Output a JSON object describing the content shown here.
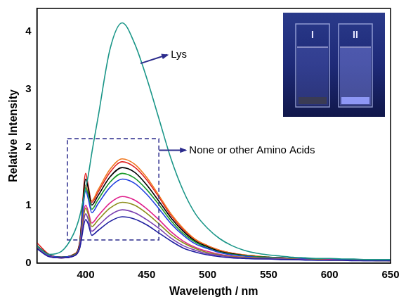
{
  "chart_data": {
    "type": "line",
    "x_label": "Wavelength / nm",
    "y_label": "Relative Intensity",
    "x": [
      360,
      370,
      380,
      390,
      395,
      400,
      402,
      405,
      410,
      420,
      430,
      440,
      450,
      460,
      470,
      480,
      490,
      500,
      510,
      520,
      530,
      540,
      550,
      560,
      570,
      580,
      590,
      600,
      610,
      620,
      630,
      640,
      650
    ],
    "xlim": [
      360,
      650
    ],
    "xticks": [
      400,
      450,
      500,
      550,
      600,
      650
    ],
    "ylim": [
      0,
      4.4
    ],
    "yticks": [
      0,
      1,
      2,
      3,
      4
    ],
    "grid": false,
    "annotations": [
      "Lys",
      "None or other Amino Acids"
    ],
    "inset_labels": [
      "I",
      "II"
    ],
    "series": [
      {
        "color": "#1a9688",
        "values": [
          0.3,
          0.15,
          0.2,
          0.5,
          0.8,
          1.3,
          1.5,
          1.9,
          2.5,
          3.7,
          4.15,
          3.8,
          3.2,
          2.5,
          1.8,
          1.25,
          0.85,
          0.6,
          0.42,
          0.3,
          0.22,
          0.17,
          0.14,
          0.12,
          0.1,
          0.09,
          0.08,
          0.08,
          0.07,
          0.07,
          0.06,
          0.06,
          0.06
        ]
      },
      {
        "color": "#1f1fa0",
        "values": [
          0.25,
          0.11,
          0.09,
          0.12,
          0.25,
          0.75,
          0.68,
          0.48,
          0.56,
          0.72,
          0.8,
          0.76,
          0.66,
          0.52,
          0.38,
          0.26,
          0.19,
          0.14,
          0.11,
          0.09,
          0.08,
          0.07,
          0.07,
          0.06,
          0.06,
          0.05,
          0.05,
          0.05,
          0.05,
          0.04,
          0.04,
          0.04,
          0.04
        ]
      },
      {
        "color": "#7a3fb0",
        "values": [
          0.26,
          0.12,
          0.09,
          0.12,
          0.26,
          0.85,
          0.76,
          0.55,
          0.64,
          0.83,
          0.92,
          0.87,
          0.75,
          0.6,
          0.43,
          0.3,
          0.22,
          0.16,
          0.13,
          0.1,
          0.09,
          0.08,
          0.07,
          0.07,
          0.06,
          0.06,
          0.05,
          0.05,
          0.05,
          0.05,
          0.04,
          0.04,
          0.04
        ]
      },
      {
        "color": "#8c8c1a",
        "values": [
          0.27,
          0.12,
          0.09,
          0.13,
          0.27,
          0.95,
          0.85,
          0.63,
          0.74,
          0.95,
          1.05,
          1.0,
          0.86,
          0.68,
          0.49,
          0.35,
          0.25,
          0.18,
          0.14,
          0.11,
          0.1,
          0.09,
          0.08,
          0.07,
          0.07,
          0.06,
          0.06,
          0.05,
          0.05,
          0.05,
          0.05,
          0.04,
          0.04
        ]
      },
      {
        "color": "#e0208c",
        "values": [
          0.27,
          0.12,
          0.09,
          0.13,
          0.28,
          1.0,
          0.9,
          0.69,
          0.81,
          1.04,
          1.15,
          1.09,
          0.94,
          0.75,
          0.54,
          0.38,
          0.27,
          0.2,
          0.15,
          0.12,
          0.1,
          0.09,
          0.08,
          0.08,
          0.07,
          0.06,
          0.06,
          0.06,
          0.05,
          0.05,
          0.05,
          0.05,
          0.04
        ]
      },
      {
        "color": "#2040e0",
        "values": [
          0.28,
          0.13,
          0.1,
          0.13,
          0.3,
          1.25,
          1.12,
          0.87,
          1.02,
          1.31,
          1.45,
          1.38,
          1.19,
          0.94,
          0.68,
          0.48,
          0.33,
          0.25,
          0.18,
          0.14,
          0.12,
          0.1,
          0.09,
          0.08,
          0.08,
          0.07,
          0.06,
          0.06,
          0.06,
          0.05,
          0.05,
          0.05,
          0.05
        ]
      },
      {
        "color": "#1a9a2a",
        "values": [
          0.28,
          0.13,
          0.1,
          0.14,
          0.3,
          1.3,
          1.18,
          0.93,
          1.09,
          1.4,
          1.55,
          1.47,
          1.27,
          1.01,
          0.73,
          0.51,
          0.36,
          0.26,
          0.19,
          0.15,
          0.13,
          0.11,
          0.1,
          0.09,
          0.08,
          0.07,
          0.07,
          0.06,
          0.06,
          0.06,
          0.05,
          0.05,
          0.05
        ]
      },
      {
        "color": "#000000",
        "values": [
          0.3,
          0.14,
          0.1,
          0.14,
          0.33,
          1.45,
          1.3,
          1.0,
          1.16,
          1.49,
          1.65,
          1.57,
          1.35,
          1.07,
          0.78,
          0.55,
          0.38,
          0.28,
          0.2,
          0.16,
          0.13,
          0.11,
          0.1,
          0.09,
          0.08,
          0.07,
          0.07,
          0.06,
          0.06,
          0.06,
          0.05,
          0.05,
          0.05
        ]
      },
      {
        "color": "#f07820",
        "values": [
          0.3,
          0.14,
          0.1,
          0.14,
          0.33,
          1.35,
          1.2,
          1.08,
          1.26,
          1.62,
          1.8,
          1.71,
          1.48,
          1.17,
          0.85,
          0.6,
          0.41,
          0.3,
          0.22,
          0.17,
          0.14,
          0.12,
          0.1,
          0.09,
          0.08,
          0.07,
          0.07,
          0.06,
          0.06,
          0.06,
          0.05,
          0.05,
          0.05
        ]
      },
      {
        "color": "#e02020",
        "values": [
          0.35,
          0.15,
          0.1,
          0.15,
          0.35,
          1.55,
          1.35,
          1.05,
          1.22,
          1.57,
          1.75,
          1.66,
          1.44,
          1.14,
          0.82,
          0.58,
          0.4,
          0.3,
          0.22,
          0.17,
          0.14,
          0.12,
          0.1,
          0.09,
          0.08,
          0.07,
          0.07,
          0.06,
          0.06,
          0.06,
          0.05,
          0.05,
          0.05
        ]
      }
    ]
  }
}
